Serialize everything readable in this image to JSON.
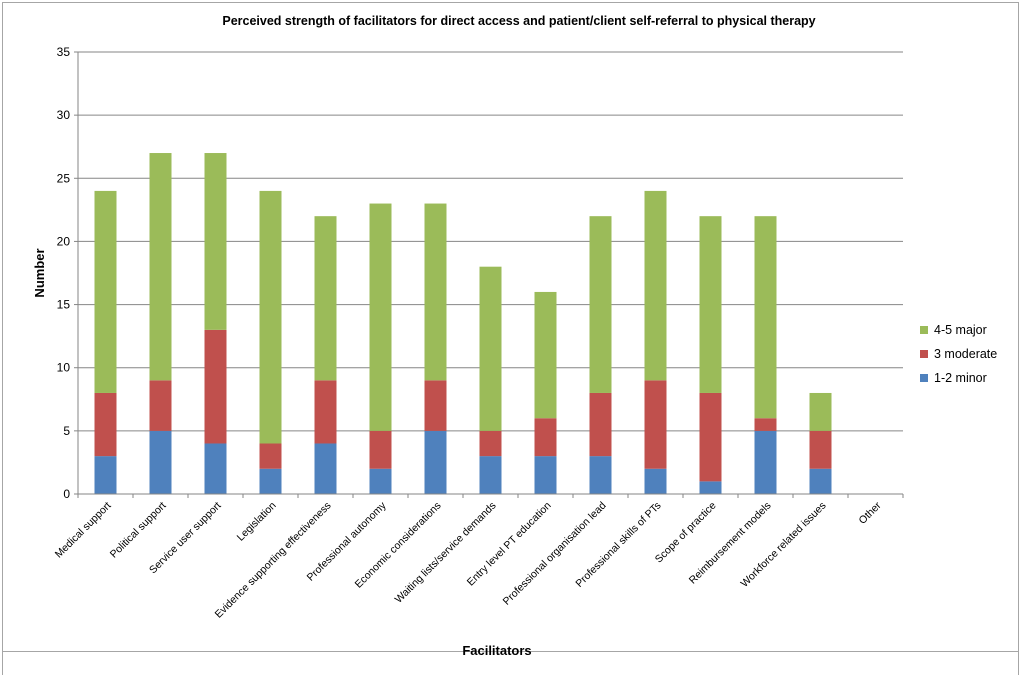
{
  "chart_data": {
    "type": "bar",
    "stacked": true,
    "title": "Perceived strength of facilitators for direct access and patient/client self-referral to physical therapy",
    "xlabel": "Facilitators",
    "ylabel": "Number",
    "ylim": [
      0,
      35
    ],
    "yticks": [
      "0",
      "5",
      "10",
      "15",
      "20",
      "25",
      "30",
      "35"
    ],
    "grid": true,
    "legend_position": "right",
    "categories": [
      "Medical support",
      "Political support",
      "Service user support",
      "Legislation",
      "Evidence supporting effectiveness",
      "Professional autonomy",
      "Economic considerations",
      "Waiting lists/service demands",
      "Entry level PT education",
      "Professional organisation lead",
      "Professional skills of PTs",
      "Scope of practice",
      "Reimbursement models",
      "Workforce related issues",
      "Other"
    ],
    "series": [
      {
        "name": "1-2 minor",
        "color": "#4f81bd",
        "values": [
          3,
          5,
          4,
          2,
          4,
          2,
          5,
          3,
          3,
          3,
          2,
          1,
          5,
          2,
          0
        ]
      },
      {
        "name": "3 moderate",
        "color": "#c0504d",
        "values": [
          5,
          4,
          9,
          2,
          5,
          3,
          4,
          2,
          3,
          5,
          7,
          7,
          1,
          3,
          0
        ]
      },
      {
        "name": "4-5 major",
        "color": "#9bbb59",
        "values": [
          16,
          18,
          14,
          20,
          13,
          18,
          14,
          13,
          10,
          14,
          15,
          14,
          16,
          3,
          0
        ]
      }
    ],
    "legend_order": [
      "4-5 major",
      "3 moderate",
      "1-2 minor"
    ]
  }
}
